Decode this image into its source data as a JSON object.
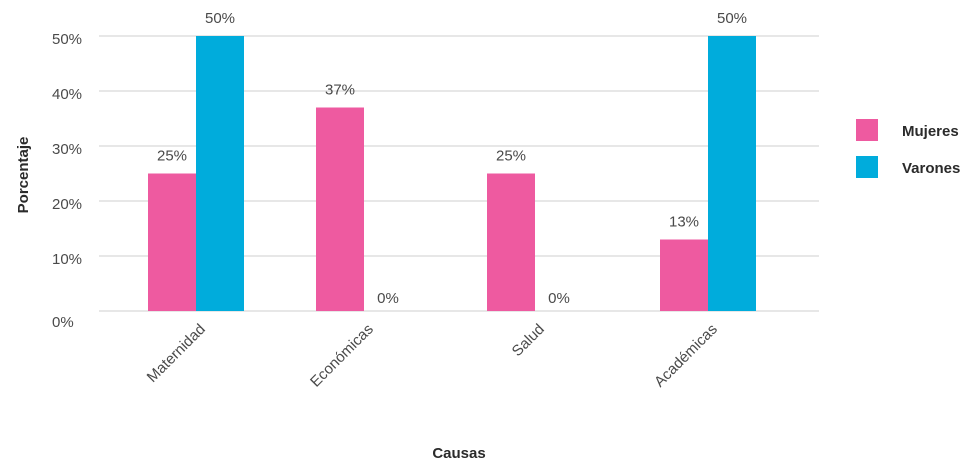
{
  "chart_data": {
    "type": "bar",
    "xlabel": "Causas",
    "ylabel": "Porcentaje",
    "categories": [
      "Maternidad",
      "Económicas",
      "Salud",
      "Académicas"
    ],
    "series": [
      {
        "name": "Mujeres",
        "color": "#ee5aa0",
        "values": [
          25,
          37,
          25,
          13
        ],
        "labels": [
          "25%",
          "37%",
          "25%",
          "13%"
        ]
      },
      {
        "name": "Varones",
        "color": "#00acdc",
        "values": [
          50,
          0,
          0,
          50
        ],
        "labels": [
          "50%",
          "0%",
          "0%",
          "50%"
        ]
      }
    ],
    "ylim": [
      0,
      50
    ],
    "yticks": [
      0,
      10,
      20,
      30,
      40,
      50
    ],
    "ytick_labels": [
      "0%",
      "10%",
      "20%",
      "30%",
      "40%",
      "50%"
    ],
    "grid": true,
    "legend": "right"
  }
}
